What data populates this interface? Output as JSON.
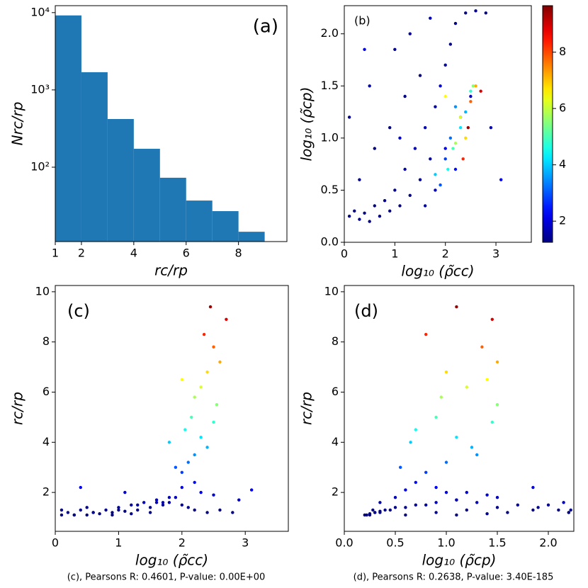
{
  "chart_data": [
    {
      "type": "histogram",
      "label": "(a)",
      "xlabel": "rc/rp",
      "ylabel": "Nrc/rp",
      "bins": [
        1,
        2,
        3,
        4,
        5,
        6,
        7,
        8,
        9
      ],
      "counts": [
        9200,
        1695,
        420,
        173,
        73,
        37,
        27,
        14.6
      ],
      "color": "#1f77b4",
      "xlim": [
        1,
        9.85
      ],
      "xticks": [
        1,
        2,
        4,
        6,
        8
      ],
      "yscale": "log",
      "ylim": [
        10.9,
        12300
      ],
      "yticks": [
        {
          "value": 100,
          "label": "10²"
        },
        {
          "value": 1000,
          "label": "10³"
        },
        {
          "value": 10000,
          "label": "10⁴"
        }
      ]
    },
    {
      "type": "scatter",
      "label": "(b)",
      "xlabel": "log₁₀ (ρ̃cc)",
      "ylabel": "log₁₀ (ρ̃cp)",
      "colormap": "jet",
      "clim": [
        1.25,
        9.65
      ],
      "colorbar_ticks": [
        2,
        4,
        6,
        8
      ],
      "xlim": [
        0,
        3.7
      ],
      "xticks": [
        0,
        1,
        2,
        3
      ],
      "ylim": [
        0,
        2.27
      ],
      "yticks": [
        {
          "value": 0,
          "label": "0.0"
        },
        {
          "value": 0.5,
          "label": "0.5"
        },
        {
          "value": 1,
          "label": "1.0"
        },
        {
          "value": 1.5,
          "label": "1.5"
        },
        {
          "value": 2,
          "label": "2.0"
        }
      ],
      "x": [
        0.1,
        0.2,
        0.3,
        0.4,
        0.5,
        0.6,
        0.7,
        0.8,
        0.9,
        1.0,
        1.1,
        1.2,
        1.3,
        1.4,
        1.5,
        1.6,
        1.7,
        1.8,
        1.9,
        2.0,
        2.1,
        2.2,
        2.4,
        2.6,
        2.8,
        1.5,
        1.2,
        0.9,
        0.6,
        0.3,
        0.1,
        0.5,
        1.0,
        1.3,
        1.7,
        2.3,
        2.0,
        2.5,
        1.8,
        2.2,
        1.6,
        0.4,
        1.1,
        2.9,
        3.1,
        2.0,
        2.1,
        1.9,
        2.2,
        1.8,
        2.3,
        2.05,
        2.4,
        2.15,
        2.5,
        2.2,
        2.3,
        2.4,
        2.6,
        2.5,
        2.35,
        2.7,
        2.45,
        2.0,
        2.55
      ],
      "y": [
        0.25,
        0.3,
        0.22,
        0.28,
        0.2,
        0.35,
        0.25,
        0.4,
        0.3,
        0.5,
        0.35,
        0.7,
        0.45,
        0.9,
        0.6,
        1.1,
        0.8,
        1.3,
        1.5,
        1.7,
        1.9,
        2.1,
        2.2,
        2.22,
        2.2,
        1.6,
        1.4,
        1.1,
        0.9,
        0.6,
        1.2,
        1.5,
        1.85,
        2.0,
        2.15,
        1.2,
        0.9,
        1.4,
        0.5,
        0.7,
        0.35,
        1.85,
        1.0,
        1.1,
        0.6,
        0.8,
        1.0,
        0.55,
        1.3,
        0.65,
        1.1,
        0.7,
        1.25,
        0.9,
        1.45,
        0.95,
        1.2,
        1.0,
        1.5,
        1.35,
        0.8,
        1.45,
        1.1,
        1.4,
        1.5
      ],
      "c": [
        1.1,
        1.2,
        1.1,
        1.3,
        1.1,
        1.2,
        1.15,
        1.3,
        1.2,
        1.4,
        1.25,
        1.5,
        1.3,
        1.6,
        1.4,
        1.7,
        1.5,
        1.6,
        1.8,
        1.5,
        1.4,
        1.3,
        1.2,
        1.3,
        1.2,
        1.2,
        1.15,
        1.1,
        1.2,
        1.1,
        1.3,
        1.4,
        1.3,
        1.5,
        1.6,
        2.0,
        2.2,
        1.9,
        1.8,
        2.4,
        1.6,
        2.2,
        2.0,
        1.7,
        2.1,
        2.8,
        3.2,
        3.0,
        3.5,
        4.0,
        4.2,
        4.5,
        3.8,
        5.0,
        4.8,
        5.8,
        6.2,
        6.8,
        7.2,
        7.8,
        8.3,
        8.9,
        9.4,
        6.5,
        5.5
      ]
    },
    {
      "type": "scatter",
      "label": "(c)",
      "xlabel": "log₁₀ (ρ̃cc)",
      "ylabel": "rc/rp",
      "caption": "(c), Pearsons R: 0.4601, P-value: 0.00E+00",
      "colormap": "jet",
      "clim": [
        1.25,
        9.65
      ],
      "xlim": [
        0,
        3.68
      ],
      "xticks": [
        0,
        1,
        2,
        3
      ],
      "ylim": [
        0.45,
        10.25
      ],
      "yticks": [
        2,
        4,
        6,
        8,
        10
      ],
      "x": [
        0.1,
        0.2,
        0.3,
        0.4,
        0.5,
        0.6,
        0.7,
        0.8,
        0.9,
        1.0,
        1.1,
        1.2,
        1.3,
        1.4,
        1.5,
        1.6,
        1.7,
        1.8,
        1.9,
        2.0,
        2.1,
        2.2,
        2.4,
        2.6,
        2.8,
        1.5,
        1.2,
        0.9,
        0.6,
        0.3,
        0.1,
        0.5,
        1.0,
        1.3,
        1.7,
        2.3,
        2.0,
        2.5,
        1.8,
        2.2,
        1.6,
        0.4,
        1.1,
        2.9,
        3.1,
        2.0,
        2.1,
        1.9,
        2.2,
        1.8,
        2.3,
        2.05,
        2.4,
        2.15,
        2.5,
        2.2,
        2.3,
        2.4,
        2.6,
        2.5,
        2.35,
        2.7,
        2.45,
        2.0,
        2.55
      ],
      "y": [
        1.1,
        1.2,
        1.1,
        1.3,
        1.1,
        1.2,
        1.15,
        1.3,
        1.2,
        1.4,
        1.25,
        1.5,
        1.3,
        1.6,
        1.4,
        1.7,
        1.5,
        1.6,
        1.8,
        1.5,
        1.4,
        1.3,
        1.2,
        1.3,
        1.2,
        1.2,
        1.15,
        1.1,
        1.2,
        1.1,
        1.3,
        1.4,
        1.3,
        1.5,
        1.6,
        2.0,
        2.2,
        1.9,
        1.8,
        2.4,
        1.6,
        2.2,
        2.0,
        1.7,
        2.1,
        2.8,
        3.2,
        3.0,
        3.5,
        4.0,
        4.2,
        4.5,
        3.8,
        5.0,
        4.8,
        5.8,
        6.2,
        6.8,
        7.2,
        7.8,
        8.3,
        8.9,
        9.4,
        6.5,
        5.5
      ]
    },
    {
      "type": "scatter",
      "label": "(d)",
      "xlabel": "log₁₀ (ρ̃cp)",
      "ylabel": "rc/rp",
      "caption": "(d), Pearsons R: 0.2638, P-value: 3.40E-185",
      "colormap": "jet",
      "clim": [
        1.25,
        9.65
      ],
      "xlim": [
        0,
        2.25
      ],
      "xticks": [
        {
          "value": 0,
          "label": "0.0"
        },
        {
          "value": 0.5,
          "label": "0.5"
        },
        {
          "value": 1,
          "label": "1.0"
        },
        {
          "value": 1.5,
          "label": "1.5"
        },
        {
          "value": 2,
          "label": "2.0"
        }
      ],
      "ylim": [
        0.45,
        10.25
      ],
      "yticks": [
        2,
        4,
        6,
        8,
        10
      ],
      "x": [
        0.25,
        0.3,
        0.22,
        0.28,
        0.2,
        0.35,
        0.25,
        0.4,
        0.3,
        0.5,
        0.35,
        0.7,
        0.45,
        0.9,
        0.6,
        1.1,
        0.8,
        1.3,
        1.5,
        1.7,
        1.9,
        2.1,
        2.2,
        2.22,
        2.2,
        1.6,
        1.4,
        1.1,
        0.9,
        0.6,
        1.2,
        1.5,
        1.85,
        2.0,
        2.15,
        1.2,
        0.9,
        1.4,
        0.5,
        0.7,
        0.35,
        1.85,
        1.0,
        1.1,
        0.6,
        0.8,
        1.0,
        0.55,
        1.3,
        0.65,
        1.1,
        0.7,
        1.25,
        0.9,
        1.45,
        0.95,
        1.2,
        1.0,
        1.5,
        1.35,
        0.8,
        1.45,
        1.1,
        1.4,
        1.5
      ],
      "y": [
        1.1,
        1.2,
        1.1,
        1.3,
        1.1,
        1.2,
        1.15,
        1.3,
        1.2,
        1.4,
        1.25,
        1.5,
        1.3,
        1.6,
        1.4,
        1.7,
        1.5,
        1.6,
        1.8,
        1.5,
        1.4,
        1.3,
        1.2,
        1.3,
        1.2,
        1.2,
        1.15,
        1.1,
        1.2,
        1.1,
        1.3,
        1.4,
        1.3,
        1.5,
        1.6,
        2.0,
        2.2,
        1.9,
        1.8,
        2.4,
        1.6,
        2.2,
        2.0,
        1.7,
        2.1,
        2.8,
        3.2,
        3.0,
        3.5,
        4.0,
        4.2,
        4.5,
        3.8,
        5.0,
        4.8,
        5.8,
        6.2,
        6.8,
        7.2,
        7.8,
        8.3,
        8.9,
        9.4,
        6.5,
        5.5
      ]
    }
  ]
}
